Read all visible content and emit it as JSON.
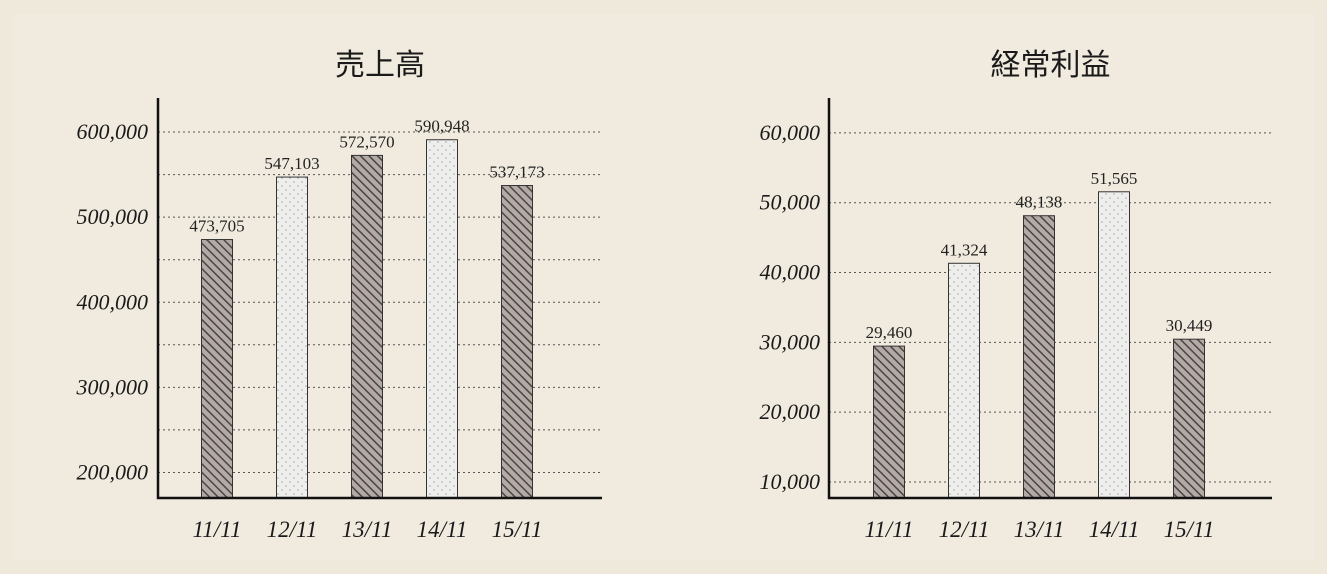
{
  "chart_data": [
    {
      "type": "bar",
      "title": "売上高",
      "categories": [
        "11/11",
        "12/11",
        "13/11",
        "14/11",
        "15/11"
      ],
      "values": [
        473705,
        547103,
        572570,
        590948,
        537173
      ],
      "value_labels": [
        "473,705",
        "547,103",
        "572,570",
        "590,948",
        "537,173"
      ],
      "bar_styles": [
        "hatch",
        "dots",
        "hatch",
        "dots",
        "hatch"
      ],
      "yticks": [
        200000,
        300000,
        400000,
        500000,
        600000
      ],
      "ytick_labels": [
        "200,000",
        "300,000",
        "400,000",
        "500,000",
        "600,000"
      ],
      "ylim": [
        170000,
        640000
      ],
      "grid_step": 50000,
      "grid": true,
      "xlabel": "",
      "ylabel": ""
    },
    {
      "type": "bar",
      "title": "経常利益",
      "categories": [
        "11/11",
        "12/11",
        "13/11",
        "14/11",
        "15/11"
      ],
      "values": [
        29460,
        41324,
        48138,
        51565,
        30449
      ],
      "value_labels": [
        "29,460",
        "41,324",
        "48,138",
        "51,565",
        "30,449"
      ],
      "bar_styles": [
        "hatch",
        "dots",
        "hatch",
        "dots",
        "hatch"
      ],
      "yticks": [
        10000,
        20000,
        30000,
        40000,
        50000,
        60000
      ],
      "ytick_labels": [
        "10,000",
        "20,000",
        "30,000",
        "40,000",
        "50,000",
        "60,000"
      ],
      "ylim": [
        7700,
        65000
      ],
      "grid_step": 10000,
      "grid": true,
      "xlabel": "",
      "ylabel": ""
    }
  ]
}
